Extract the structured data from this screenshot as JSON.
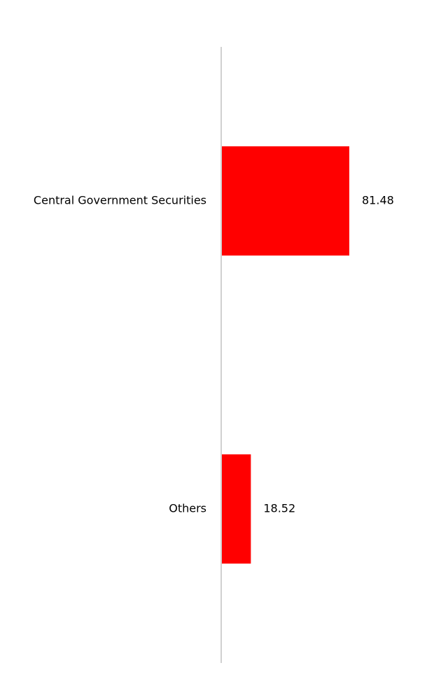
{
  "chart_data": {
    "type": "barh",
    "categories": [
      "Central Government Securities",
      "Others"
    ],
    "values": [
      81.48,
      18.52
    ],
    "color": "#ff0000"
  }
}
